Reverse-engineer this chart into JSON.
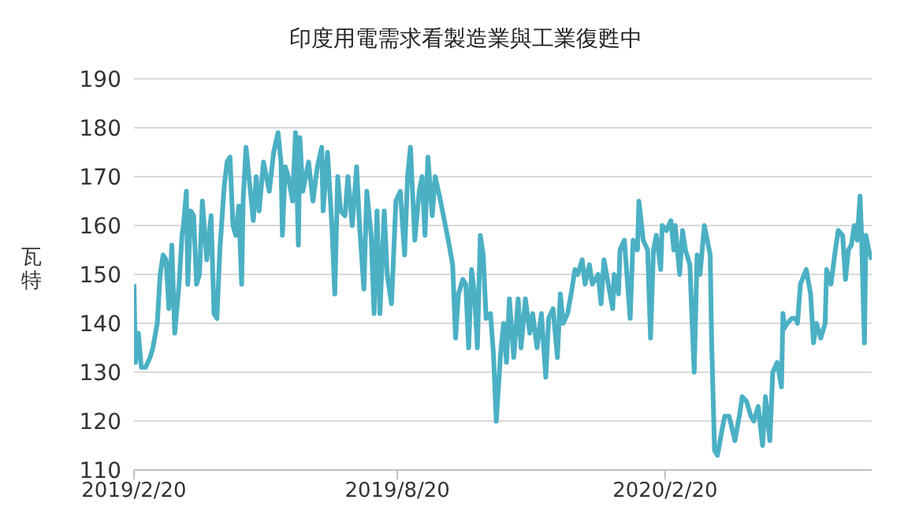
{
  "chart_data": {
    "type": "line",
    "title": "印度用電需求看製造業與工業復甦中",
    "ylabel": "瓦特",
    "x": [
      "2019-02-20",
      "2019-02-21",
      "2019-02-23",
      "2019-02-25",
      "2019-02-28",
      "2019-03-03",
      "2019-03-05",
      "2019-03-08",
      "2019-03-10",
      "2019-03-12",
      "2019-03-14",
      "2019-03-16",
      "2019-03-18",
      "2019-03-20",
      "2019-03-23",
      "2019-03-25",
      "2019-03-26",
      "2019-03-28",
      "2019-03-29",
      "2019-03-31",
      "2019-04-02",
      "2019-04-04",
      "2019-04-06",
      "2019-04-08",
      "2019-04-11",
      "2019-04-14",
      "2019-04-16",
      "2019-04-18",
      "2019-04-20",
      "2019-04-23",
      "2019-04-25",
      "2019-04-27",
      "2019-04-29",
      "2019-05-01",
      "2019-05-03",
      "2019-05-05",
      "2019-05-06",
      "2019-05-08",
      "2019-05-10",
      "2019-05-13",
      "2019-05-15",
      "2019-05-17",
      "2019-05-20",
      "2019-05-22",
      "2019-05-24",
      "2019-05-27",
      "2019-05-30",
      "2019-06-01",
      "2019-06-02",
      "2019-06-04",
      "2019-06-06",
      "2019-06-09",
      "2019-06-11",
      "2019-06-13",
      "2019-06-14",
      "2019-06-16",
      "2019-06-20",
      "2019-06-23",
      "2019-06-26",
      "2019-06-29",
      "2019-06-30",
      "2019-07-03",
      "2019-07-06",
      "2019-07-08",
      "2019-07-10",
      "2019-07-12",
      "2019-07-15",
      "2019-07-17",
      "2019-07-20",
      "2019-07-23",
      "2019-07-25",
      "2019-07-28",
      "2019-07-30",
      "2019-08-02",
      "2019-08-04",
      "2019-08-06",
      "2019-08-08",
      "2019-08-11",
      "2019-08-13",
      "2019-08-16",
      "2019-08-19",
      "2019-08-22",
      "2019-08-25",
      "2019-08-27",
      "2019-08-29",
      "2019-09-01",
      "2019-09-04",
      "2019-09-06",
      "2019-09-08",
      "2019-09-10",
      "2019-09-13",
      "2019-09-15",
      "2019-09-18",
      "2019-09-22",
      "2019-09-24",
      "2019-09-27",
      "2019-09-29",
      "2019-10-01",
      "2019-10-04",
      "2019-10-06",
      "2019-10-08",
      "2019-10-10",
      "2019-10-12",
      "2019-10-14",
      "2019-10-16",
      "2019-10-18",
      "2019-10-20",
      "2019-10-23",
      "2019-10-25",
      "2019-10-27",
      "2019-10-30",
      "2019-11-01",
      "2019-11-03",
      "2019-11-05",
      "2019-11-08",
      "2019-11-11",
      "2019-11-13",
      "2019-11-16",
      "2019-11-19",
      "2019-11-21",
      "2019-11-24",
      "2019-11-27",
      "2019-11-30",
      "2019-12-02",
      "2019-12-05",
      "2019-12-08",
      "2019-12-10",
      "2019-12-12",
      "2019-12-15",
      "2019-12-18",
      "2019-12-20",
      "2019-12-22",
      "2019-12-25",
      "2019-12-27",
      "2019-12-30",
      "2020-01-01",
      "2020-01-05",
      "2020-01-07",
      "2020-01-09",
      "2020-01-12",
      "2020-01-15",
      "2020-01-16",
      "2020-01-19",
      "2020-01-20",
      "2020-01-23",
      "2020-01-27",
      "2020-01-29",
      "2020-02-01",
      "2020-02-02",
      "2020-02-05",
      "2020-02-08",
      "2020-02-10",
      "2020-02-12",
      "2020-02-14",
      "2020-02-17",
      "2020-02-18",
      "2020-02-21",
      "2020-02-24",
      "2020-02-26",
      "2020-02-27",
      "2020-03-01",
      "2020-03-03",
      "2020-03-05",
      "2020-03-08",
      "2020-03-11",
      "2020-03-13",
      "2020-03-15",
      "2020-03-18",
      "2020-03-22",
      "2020-03-23",
      "2020-03-25",
      "2020-03-27",
      "2020-03-30",
      "2020-04-01",
      "2020-04-04",
      "2020-04-08",
      "2020-04-11",
      "2020-04-13",
      "2020-04-16",
      "2020-04-19",
      "2020-04-21",
      "2020-04-24",
      "2020-04-27",
      "2020-04-29",
      "2020-05-02",
      "2020-05-04",
      "2020-05-07",
      "2020-05-10",
      "2020-05-11",
      "2020-05-12",
      "2020-05-14",
      "2020-05-17",
      "2020-05-20",
      "2020-05-21",
      "2020-05-23",
      "2020-05-27",
      "2020-05-30",
      "2020-06-01",
      "2020-06-03",
      "2020-06-06",
      "2020-06-09",
      "2020-06-10",
      "2020-06-13",
      "2020-06-16",
      "2020-06-18",
      "2020-06-21",
      "2020-06-23",
      "2020-06-25",
      "2020-06-27",
      "2020-06-29",
      "2020-07-01",
      "2020-07-03",
      "2020-07-04",
      "2020-07-06",
      "2020-07-07",
      "2020-07-09",
      "2020-07-11"
    ],
    "series": [
      {
        "color": "#4bb0c4",
        "values": [
          148,
          132,
          138,
          131,
          131,
          133,
          135,
          140,
          150,
          154,
          153,
          143,
          156,
          138,
          148,
          158,
          160,
          167,
          148,
          163,
          162,
          148,
          150,
          165,
          153,
          162,
          142,
          141,
          155,
          168,
          173,
          174,
          160,
          158,
          164,
          148,
          165,
          176,
          170,
          161,
          170,
          163,
          173,
          170,
          167,
          175,
          179,
          173,
          158,
          172,
          170,
          165,
          179,
          156,
          178,
          167,
          173,
          165,
          172,
          176,
          163,
          175,
          160,
          146,
          170,
          163,
          162,
          170,
          160,
          172,
          160,
          147,
          167,
          158,
          142,
          163,
          142,
          163,
          150,
          144,
          165,
          167,
          154,
          170,
          176,
          157,
          167,
          170,
          158,
          174,
          162,
          170,
          166,
          160,
          157,
          152,
          137,
          146,
          149,
          148,
          135,
          151,
          146,
          135,
          158,
          154,
          141,
          142,
          134,
          120,
          134,
          140,
          132,
          145,
          133,
          145,
          135,
          145,
          138,
          142,
          135,
          142,
          129,
          141,
          143,
          133,
          146,
          140,
          142,
          147,
          151,
          150,
          153,
          148,
          152,
          148,
          150,
          144,
          153,
          148,
          143,
          150,
          146,
          155,
          157,
          141,
          157,
          155,
          165,
          157,
          155,
          137,
          155,
          158,
          151,
          160,
          159,
          161,
          155,
          160,
          150,
          159,
          155,
          152,
          130,
          154,
          150,
          160,
          154,
          136,
          114,
          113,
          118,
          121,
          121,
          116,
          121,
          125,
          124,
          121,
          120,
          123,
          115,
          125,
          116,
          130,
          132,
          127,
          142,
          139,
          140,
          141,
          141,
          140,
          148,
          151,
          146,
          136,
          140,
          137,
          140,
          151,
          148,
          155,
          159,
          158,
          149,
          155,
          156,
          160,
          157,
          166,
          158,
          136,
          158,
          155,
          153
        ]
      }
    ],
    "xlim": [
      "2019-02-20",
      "2020-07-11"
    ],
    "xticks": [
      {
        "value": "2019-02-20",
        "label": "2019/2/20"
      },
      {
        "value": "2019-08-20",
        "label": "2019/8/20"
      },
      {
        "value": "2020-02-20",
        "label": "2020/2/20"
      }
    ],
    "ylim": [
      110,
      190
    ],
    "yticks": [
      110,
      120,
      130,
      140,
      150,
      160,
      170,
      180,
      190
    ],
    "grid": "y",
    "marker": "none",
    "line_style": "solid"
  }
}
